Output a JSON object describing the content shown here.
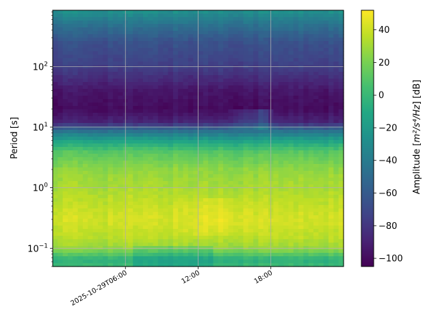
{
  "chart_data": {
    "type": "heatmap",
    "title": "",
    "xlabel": "",
    "ylabel": "Period [s]",
    "x_scale": "time",
    "y_scale": "log",
    "xlim": [
      "2025-10-29T00:00",
      "2025-10-30T00:00"
    ],
    "ylim": [
      0.05,
      850
    ],
    "x_ticks": [
      {
        "value": "2025-10-29T06:00",
        "label": "2025-10-29T06:00"
      },
      {
        "value": "2025-10-29T12:00",
        "label": "12:00"
      },
      {
        "value": "2025-10-29T18:00",
        "label": "18:00"
      }
    ],
    "y_ticks": [
      {
        "value": 0.1,
        "base": "10",
        "exp": "−1"
      },
      {
        "value": 1,
        "base": "10",
        "exp": "0"
      },
      {
        "value": 10,
        "base": "10",
        "exp": "1"
      },
      {
        "value": 100,
        "base": "10",
        "exp": "2"
      }
    ],
    "grid": true,
    "colormap": "viridis",
    "colorbar": {
      "label_main": "Amplitude [",
      "label_unit": "m²/s⁴/Hz",
      "label_end": "] [dB]",
      "range": [
        -105,
        52
      ],
      "ticks": [
        40,
        20,
        0,
        -20,
        -40,
        -60,
        -80,
        -100
      ],
      "tick_labels": [
        "40",
        "20",
        "0",
        "−20",
        "−40",
        "−60",
        "−80",
        "−100"
      ]
    },
    "amplitude_profile_db": [
      {
        "period_s": 0.05,
        "db": 2
      },
      {
        "period_s": 0.065,
        "db": -5
      },
      {
        "period_s": 0.08,
        "db": 12
      },
      {
        "period_s": 0.1,
        "db": 28
      },
      {
        "period_s": 0.15,
        "db": 36
      },
      {
        "period_s": 0.3,
        "db": 42
      },
      {
        "period_s": 0.5,
        "db": 38
      },
      {
        "period_s": 1,
        "db": 32
      },
      {
        "period_s": 2,
        "db": 26
      },
      {
        "period_s": 4,
        "db": 10
      },
      {
        "period_s": 6,
        "db": -15
      },
      {
        "period_s": 9,
        "db": -50
      },
      {
        "period_s": 12,
        "db": -88
      },
      {
        "period_s": 20,
        "db": -100
      },
      {
        "period_s": 40,
        "db": -95
      },
      {
        "period_s": 100,
        "db": -75
      },
      {
        "period_s": 250,
        "db": -65
      },
      {
        "period_s": 500,
        "db": -45
      },
      {
        "period_s": 850,
        "db": -25
      }
    ]
  }
}
